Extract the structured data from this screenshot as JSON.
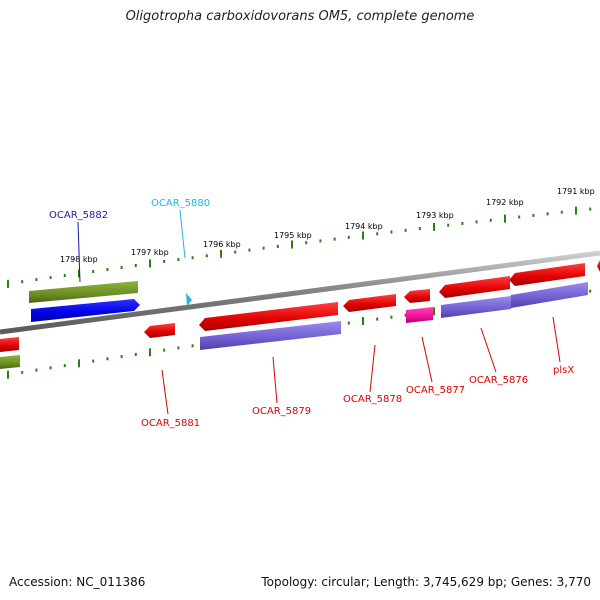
{
  "title": "Oligotropha carboxidovorans OM5, complete genome",
  "footer": {
    "accession": "Accession: NC_011386",
    "summary": "Topology: circular; Length: 3,745,629 bp; Genes: 3,770"
  },
  "ruler": {
    "unit": "kbp",
    "ticks": [
      "1798 kbp",
      "1797 kbp",
      "1796 kbp",
      "1795 kbp",
      "1794 kbp",
      "1793 kbp",
      "1792 kbp",
      "1791 kbp"
    ]
  },
  "genes": [
    {
      "id": "OCAR_5882",
      "color": "#1a1aa8"
    },
    {
      "id": "OCAR_5880",
      "color": "#22b5dd"
    },
    {
      "id": "OCAR_5881",
      "color": "#dd0000"
    },
    {
      "id": "OCAR_5879",
      "color": "#dd0000"
    },
    {
      "id": "OCAR_5878",
      "color": "#dd0000"
    },
    {
      "id": "OCAR_5877",
      "color": "#dd0000"
    },
    {
      "id": "OCAR_5876",
      "color": "#dd0000"
    },
    {
      "id": "plsX",
      "color": "#dd0000"
    }
  ],
  "colors": {
    "backbone": "#888888",
    "cds": "#ee1111",
    "gene_purple": "#7060d0",
    "gene_blue": "#0000ee",
    "olive": "#6b8e23",
    "magenta": "#ee1199",
    "cyan": "#22b5dd",
    "tick": "#2e7d1a"
  }
}
